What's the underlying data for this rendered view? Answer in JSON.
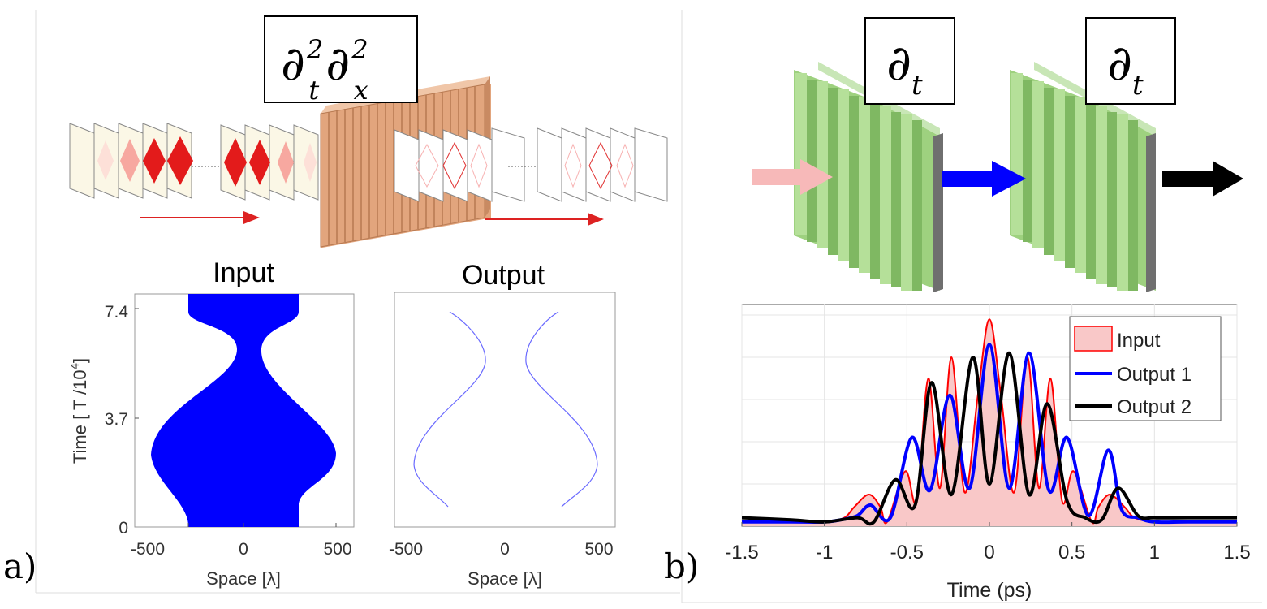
{
  "panel_a": {
    "label": "a)",
    "operator_box": {
      "main": "∂",
      "sub": "t",
      "sup": "2",
      "main2": "∂",
      "sub2": "x",
      "sup2": "2"
    },
    "input_plot": {
      "title": "Input",
      "xlabel": "Space [λ]",
      "ylabel": "Time [ T /10",
      "ylabel_exp": "4",
      "ylabel_end": "]",
      "xticks": [
        "-500",
        "0",
        "500"
      ],
      "yticks": [
        "7.4",
        "3.7",
        "0"
      ]
    },
    "output_plot": {
      "title": "Output",
      "xlabel": "Space [λ]",
      "xticks": [
        "-500",
        "0",
        "500"
      ]
    }
  },
  "panel_b": {
    "label": "b)",
    "operator_1": {
      "main": "∂",
      "sub": "t"
    },
    "operator_2": {
      "main": "∂",
      "sub": "t"
    }
  },
  "colors": {
    "input_fill": "#0000ff",
    "grating_a": "#e2a57d",
    "grating_b": "#9ed17f",
    "arrow_input": "#f7b9b9",
    "arrow_mid": "#0000ff",
    "arrow_out": "#000000"
  },
  "chart_data": {
    "type": "line",
    "title": "",
    "xlabel": "Time (ps)",
    "ylabel": "",
    "xlim": [
      -1.5,
      1.5
    ],
    "ylim": [
      0,
      1.05
    ],
    "xticks": [
      "-1.5",
      "-1",
      "-0.5",
      "0",
      "0.5",
      "1",
      "1.5"
    ],
    "grid": true,
    "legend_position": "top-right",
    "series": [
      {
        "name": "Input",
        "style": "filled",
        "color": "#ff0000",
        "x": [
          -1.5,
          -1.2,
          -1.0,
          -0.88,
          -0.82,
          -0.73,
          -0.66,
          -0.62,
          -0.51,
          -0.44,
          -0.37,
          -0.3,
          -0.23,
          -0.15,
          -0.07,
          0.0,
          0.07,
          0.15,
          0.23,
          0.3,
          0.37,
          0.44,
          0.51,
          0.62,
          0.66,
          0.73,
          0.82,
          0.88,
          1.0,
          1.2,
          1.5
        ],
        "y": [
          0.02,
          0.02,
          0.02,
          0.04,
          0.09,
          0.15,
          0.09,
          0.02,
          0.26,
          0.12,
          0.7,
          0.18,
          0.8,
          0.16,
          0.62,
          0.98,
          0.62,
          0.16,
          0.8,
          0.18,
          0.7,
          0.12,
          0.26,
          0.02,
          0.09,
          0.15,
          0.09,
          0.04,
          0.02,
          0.02,
          0.02
        ]
      },
      {
        "name": "Output 1",
        "color": "#0000ff",
        "x": [
          -1.5,
          -1.2,
          -1.0,
          -0.9,
          -0.8,
          -0.72,
          -0.6,
          -0.47,
          -0.36,
          -0.24,
          -0.12,
          0.0,
          0.12,
          0.24,
          0.36,
          0.47,
          0.6,
          0.72,
          0.8,
          0.9,
          1.0,
          1.2,
          1.5
        ],
        "y": [
          0.02,
          0.02,
          0.02,
          0.03,
          0.05,
          0.1,
          0.04,
          0.42,
          0.17,
          0.62,
          0.18,
          0.86,
          0.18,
          0.82,
          0.17,
          0.42,
          0.05,
          0.36,
          0.08,
          0.04,
          0.02,
          0.02,
          0.02
        ]
      },
      {
        "name": "Output 2",
        "color": "#000000",
        "x": [
          -1.5,
          -1.2,
          -1.0,
          -0.8,
          -0.7,
          -0.57,
          -0.45,
          -0.35,
          -0.23,
          -0.1,
          0.0,
          0.12,
          0.24,
          0.35,
          0.47,
          0.58,
          0.68,
          0.78,
          0.9,
          1.0,
          1.2,
          1.5
        ],
        "y": [
          0.04,
          0.03,
          0.02,
          0.04,
          0.02,
          0.22,
          0.1,
          0.68,
          0.15,
          0.8,
          0.2,
          0.82,
          0.15,
          0.58,
          0.12,
          0.04,
          0.03,
          0.18,
          0.05,
          0.04,
          0.04,
          0.04
        ]
      }
    ]
  }
}
